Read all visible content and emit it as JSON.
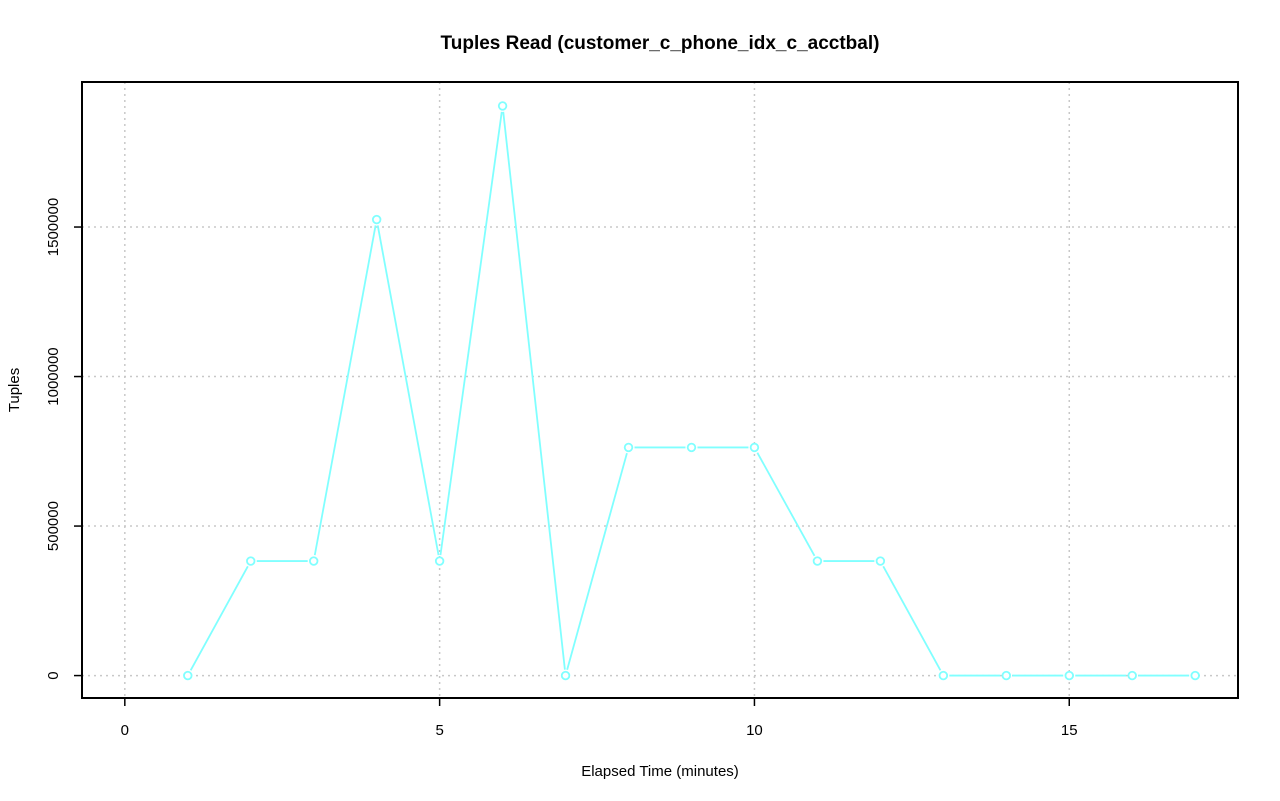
{
  "chart_data": {
    "type": "line",
    "title": "Tuples Read (customer_c_phone_idx_c_acctbal)",
    "xlabel": "Elapsed Time (minutes)",
    "ylabel": "Tuples",
    "xlim": [
      -0.68,
      17.68
    ],
    "ylim": [
      -75000,
      1985000
    ],
    "x_ticks": [
      0,
      5,
      10,
      15
    ],
    "x_tick_labels": [
      "0",
      "5",
      "10",
      "15"
    ],
    "y_ticks": [
      0,
      500000,
      1000000,
      1500000
    ],
    "y_tick_labels": [
      "0",
      "500000",
      "1000000",
      "1500000"
    ],
    "grid": true,
    "legend": "none",
    "series": [
      {
        "color": "#80ffff",
        "x": [
          1,
          2,
          3,
          4,
          5,
          6,
          7,
          8,
          9,
          10,
          11,
          12,
          13,
          14,
          15,
          16,
          17
        ],
        "values": [
          0,
          383000,
          383000,
          1525000,
          383000,
          1905000,
          0,
          763000,
          763000,
          763000,
          383000,
          383000,
          0,
          0,
          0,
          0,
          0
        ]
      }
    ]
  }
}
